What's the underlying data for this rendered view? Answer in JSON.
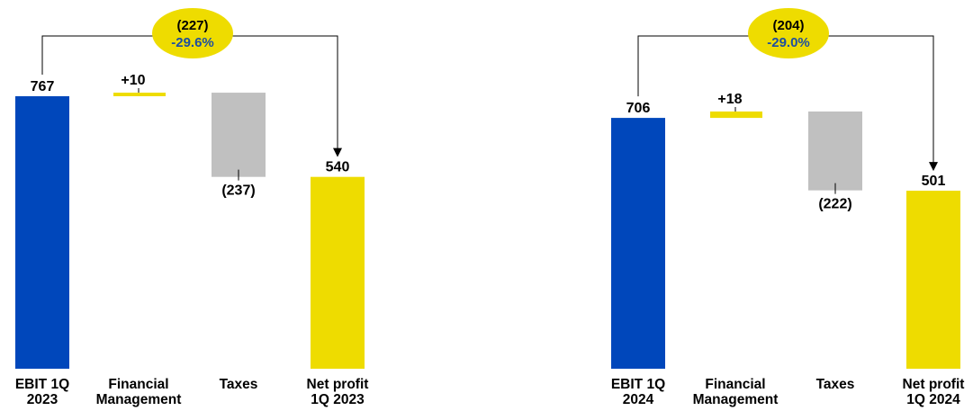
{
  "chart_data": [
    {
      "type": "waterfall",
      "categories": [
        "EBIT 1Q 2023",
        "Financial Management",
        "Taxes",
        "Net profit 1Q 2023"
      ],
      "category_lines": [
        [
          "EBIT 1Q",
          "2023"
        ],
        [
          "Financial",
          "Management"
        ],
        [
          "Taxes"
        ],
        [
          "Net profit",
          "1Q 2023"
        ]
      ],
      "values": [
        767,
        10,
        -237,
        540
      ],
      "value_labels": [
        "767",
        "+10",
        "(237)",
        "540"
      ],
      "bridge": {
        "delta_label": "(227)",
        "percent_label": "-29.6%"
      },
      "colors": [
        "#0047bb",
        "#eedc00",
        "#c0c0c0",
        "#eedc00"
      ]
    },
    {
      "type": "waterfall",
      "categories": [
        "EBIT 1Q 2024",
        "Financial Management",
        "Taxes",
        "Net profit 1Q 2024"
      ],
      "category_lines": [
        [
          "EBIT 1Q",
          "2024"
        ],
        [
          "Financial",
          "Management"
        ],
        [
          "Taxes"
        ],
        [
          "Net profit",
          "1Q 2024"
        ]
      ],
      "values": [
        706,
        18,
        -222,
        501
      ],
      "value_labels": [
        "706",
        "+18",
        "(222)",
        "501"
      ],
      "bridge": {
        "delta_label": "(204)",
        "percent_label": "-29.0%"
      },
      "colors": [
        "#0047bb",
        "#eedc00",
        "#c0c0c0",
        "#eedc00"
      ]
    }
  ],
  "colors": {
    "ebit": "#0047bb",
    "positive": "#eedc00",
    "taxes": "#c0c0c0",
    "net": "#eedc00",
    "badge": "#eedc00",
    "percent_text": "#1d4fa0"
  }
}
